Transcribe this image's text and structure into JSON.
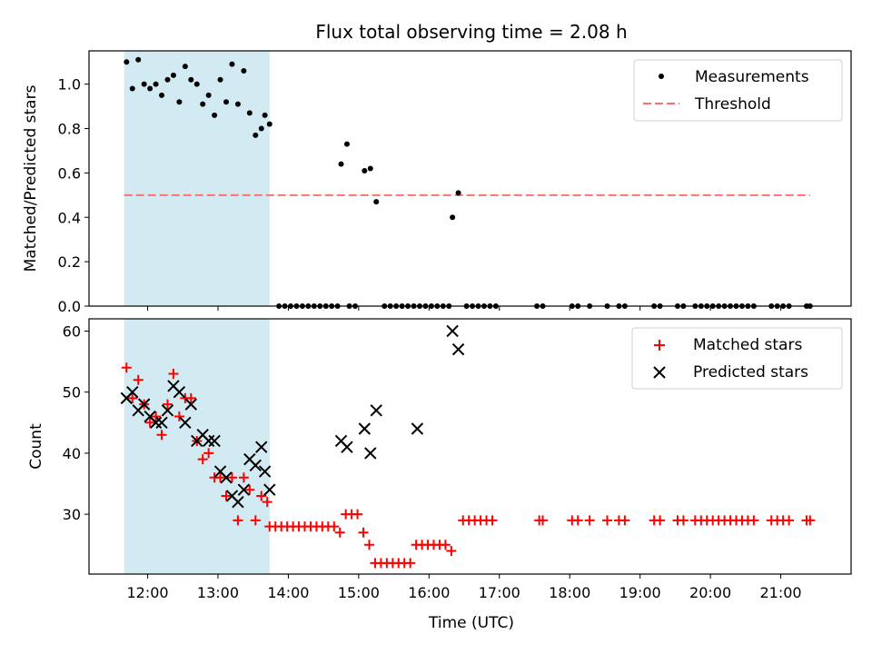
{
  "title": "Flux total observing time = 2.08 h",
  "colors": {
    "shade": "#add8e6",
    "threshold": "#ff7070",
    "matched": "#ff0000",
    "predicted": "#000000",
    "measurement": "#000000"
  },
  "chart_data": [
    {
      "type": "scatter",
      "ylabel": "Matched/Predicted stars",
      "ylim": [
        0,
        1.15
      ],
      "yticks": [
        "0.0",
        "0.2",
        "0.4",
        "0.6",
        "0.8",
        "1.0"
      ],
      "legend": {
        "position": "top-right",
        "entries": [
          "Measurements",
          "Threshold"
        ]
      },
      "shaded_region": [
        "11:40",
        "13:44"
      ],
      "threshold": {
        "name": "Threshold",
        "value": 0.5,
        "x": [
          "11:40",
          "21:25"
        ]
      },
      "series": [
        {
          "name": "Measurements",
          "points": [
            [
              "11:42",
              1.1
            ],
            [
              "11:47",
              0.98
            ],
            [
              "11:52",
              1.11
            ],
            [
              "11:57",
              1.0
            ],
            [
              "12:02",
              0.98
            ],
            [
              "12:07",
              1.0
            ],
            [
              "12:12",
              0.95
            ],
            [
              "12:17",
              1.02
            ],
            [
              "12:22",
              1.04
            ],
            [
              "12:27",
              0.92
            ],
            [
              "12:32",
              1.08
            ],
            [
              "12:37",
              1.02
            ],
            [
              "12:42",
              1.0
            ],
            [
              "12:47",
              0.91
            ],
            [
              "12:52",
              0.95
            ],
            [
              "12:57",
              0.86
            ],
            [
              "13:02",
              1.02
            ],
            [
              "13:07",
              0.92
            ],
            [
              "13:12",
              1.09
            ],
            [
              "13:17",
              0.91
            ],
            [
              "13:22",
              1.06
            ],
            [
              "13:27",
              0.87
            ],
            [
              "13:32",
              0.77
            ],
            [
              "13:37",
              0.8
            ],
            [
              "13:40",
              0.86
            ],
            [
              "13:44",
              0.82
            ],
            [
              "13:52",
              0
            ],
            [
              "13:57",
              0
            ],
            [
              "14:02",
              0
            ],
            [
              "14:07",
              0
            ],
            [
              "14:12",
              0
            ],
            [
              "14:17",
              0
            ],
            [
              "14:22",
              0
            ],
            [
              "14:27",
              0
            ],
            [
              "14:32",
              0
            ],
            [
              "14:37",
              0
            ],
            [
              "14:42",
              0
            ],
            [
              "14:45",
              0.64
            ],
            [
              "14:50",
              0.73
            ],
            [
              "14:52",
              0
            ],
            [
              "14:57",
              0
            ],
            [
              "15:05",
              0.61
            ],
            [
              "15:10",
              0.62
            ],
            [
              "15:15",
              0.47
            ],
            [
              "15:22",
              0
            ],
            [
              "15:27",
              0
            ],
            [
              "15:32",
              0
            ],
            [
              "15:37",
              0
            ],
            [
              "15:42",
              0
            ],
            [
              "15:47",
              0
            ],
            [
              "15:52",
              0
            ],
            [
              "15:57",
              0
            ],
            [
              "16:02",
              0
            ],
            [
              "16:07",
              0
            ],
            [
              "16:12",
              0
            ],
            [
              "16:17",
              0
            ],
            [
              "16:20",
              0.4
            ],
            [
              "16:25",
              0.51
            ],
            [
              "16:32",
              0
            ],
            [
              "16:37",
              0
            ],
            [
              "16:42",
              0
            ],
            [
              "16:47",
              0
            ],
            [
              "16:52",
              0
            ],
            [
              "16:57",
              0
            ],
            [
              "17:32",
              0
            ],
            [
              "17:37",
              0
            ],
            [
              "18:02",
              0
            ],
            [
              "18:07",
              0
            ],
            [
              "18:17",
              0
            ],
            [
              "18:32",
              0
            ],
            [
              "18:42",
              0
            ],
            [
              "18:47",
              0
            ],
            [
              "19:12",
              0
            ],
            [
              "19:17",
              0
            ],
            [
              "19:32",
              0
            ],
            [
              "19:37",
              0
            ],
            [
              "19:47",
              0
            ],
            [
              "19:52",
              0
            ],
            [
              "19:57",
              0
            ],
            [
              "20:02",
              0
            ],
            [
              "20:07",
              0
            ],
            [
              "20:12",
              0
            ],
            [
              "20:17",
              0
            ],
            [
              "20:22",
              0
            ],
            [
              "20:27",
              0
            ],
            [
              "20:32",
              0
            ],
            [
              "20:37",
              0
            ],
            [
              "20:52",
              0
            ],
            [
              "20:57",
              0
            ],
            [
              "21:02",
              0
            ],
            [
              "21:07",
              0
            ],
            [
              "21:22",
              0
            ],
            [
              "21:25",
              0
            ]
          ]
        }
      ]
    },
    {
      "type": "scatter",
      "xlabel": "Time (UTC)",
      "ylabel": "Count",
      "ylim": [
        20.2,
        62
      ],
      "yticks": [
        "30",
        "40",
        "50",
        "60"
      ],
      "xlim": [
        "11:10",
        "22:00"
      ],
      "xticks": [
        "12:00",
        "13:00",
        "14:00",
        "15:00",
        "16:00",
        "17:00",
        "18:00",
        "19:00",
        "20:00",
        "21:00"
      ],
      "legend": {
        "position": "top-right",
        "entries": [
          "Matched stars",
          "Predicted stars"
        ]
      },
      "shaded_region": [
        "11:40",
        "13:44"
      ],
      "series": [
        {
          "name": "Matched stars",
          "marker": "plus",
          "points": [
            [
              "11:42",
              54
            ],
            [
              "11:47",
              49
            ],
            [
              "11:52",
              52
            ],
            [
              "11:57",
              48
            ],
            [
              "12:02",
              45
            ],
            [
              "12:07",
              46
            ],
            [
              "12:12",
              43
            ],
            [
              "12:17",
              48
            ],
            [
              "12:22",
              53
            ],
            [
              "12:27",
              46
            ],
            [
              "12:32",
              49
            ],
            [
              "12:37",
              49
            ],
            [
              "12:42",
              42
            ],
            [
              "12:47",
              39
            ],
            [
              "12:52",
              40
            ],
            [
              "12:57",
              36
            ],
            [
              "13:02",
              36
            ],
            [
              "13:07",
              33
            ],
            [
              "13:12",
              36
            ],
            [
              "13:17",
              29
            ],
            [
              "13:22",
              36
            ],
            [
              "13:27",
              34
            ],
            [
              "13:32",
              29
            ],
            [
              "13:37",
              33
            ],
            [
              "13:42",
              32
            ],
            [
              "13:44",
              28
            ],
            [
              "13:49",
              28
            ],
            [
              "13:54",
              28
            ],
            [
              "13:59",
              28
            ],
            [
              "14:04",
              28
            ],
            [
              "14:09",
              28
            ],
            [
              "14:14",
              28
            ],
            [
              "14:19",
              28
            ],
            [
              "14:24",
              28
            ],
            [
              "14:29",
              28
            ],
            [
              "14:34",
              28
            ],
            [
              "14:39",
              28
            ],
            [
              "14:44",
              27
            ],
            [
              "14:49",
              30
            ],
            [
              "14:54",
              30
            ],
            [
              "14:59",
              30
            ],
            [
              "15:04",
              27
            ],
            [
              "15:09",
              25
            ],
            [
              "15:14",
              22
            ],
            [
              "15:19",
              22
            ],
            [
              "15:24",
              22
            ],
            [
              "15:29",
              22
            ],
            [
              "15:34",
              22
            ],
            [
              "15:39",
              22
            ],
            [
              "15:44",
              22
            ],
            [
              "15:49",
              25
            ],
            [
              "15:54",
              25
            ],
            [
              "15:59",
              25
            ],
            [
              "16:04",
              25
            ],
            [
              "16:09",
              25
            ],
            [
              "16:14",
              25
            ],
            [
              "16:19",
              24
            ],
            [
              "16:29",
              29
            ],
            [
              "16:34",
              29
            ],
            [
              "16:39",
              29
            ],
            [
              "16:44",
              29
            ],
            [
              "16:49",
              29
            ],
            [
              "16:54",
              29
            ],
            [
              "17:34",
              29
            ],
            [
              "17:37",
              29
            ],
            [
              "18:02",
              29
            ],
            [
              "18:07",
              29
            ],
            [
              "18:17",
              29
            ],
            [
              "18:32",
              29
            ],
            [
              "18:42",
              29
            ],
            [
              "18:47",
              29
            ],
            [
              "19:12",
              29
            ],
            [
              "19:17",
              29
            ],
            [
              "19:32",
              29
            ],
            [
              "19:37",
              29
            ],
            [
              "19:47",
              29
            ],
            [
              "19:52",
              29
            ],
            [
              "19:57",
              29
            ],
            [
              "20:02",
              29
            ],
            [
              "20:07",
              29
            ],
            [
              "20:12",
              29
            ],
            [
              "20:17",
              29
            ],
            [
              "20:22",
              29
            ],
            [
              "20:27",
              29
            ],
            [
              "20:32",
              29
            ],
            [
              "20:37",
              29
            ],
            [
              "20:52",
              29
            ],
            [
              "20:57",
              29
            ],
            [
              "21:02",
              29
            ],
            [
              "21:07",
              29
            ],
            [
              "21:22",
              29
            ],
            [
              "21:25",
              29
            ]
          ]
        },
        {
          "name": "Predicted stars",
          "marker": "x",
          "points": [
            [
              "11:42",
              49
            ],
            [
              "11:47",
              50
            ],
            [
              "11:52",
              47
            ],
            [
              "11:57",
              48
            ],
            [
              "12:02",
              46
            ],
            [
              "12:07",
              45
            ],
            [
              "12:12",
              45
            ],
            [
              "12:17",
              47
            ],
            [
              "12:22",
              51
            ],
            [
              "12:27",
              50
            ],
            [
              "12:32",
              45
            ],
            [
              "12:37",
              48
            ],
            [
              "12:42",
              42
            ],
            [
              "12:47",
              43
            ],
            [
              "12:52",
              42
            ],
            [
              "12:57",
              42
            ],
            [
              "13:02",
              37
            ],
            [
              "13:07",
              36
            ],
            [
              "13:12",
              33
            ],
            [
              "13:17",
              32
            ],
            [
              "13:22",
              34
            ],
            [
              "13:27",
              39
            ],
            [
              "13:32",
              38
            ],
            [
              "13:37",
              41
            ],
            [
              "13:40",
              37
            ],
            [
              "13:44",
              34
            ],
            [
              "14:45",
              42
            ],
            [
              "14:50",
              41
            ],
            [
              "15:05",
              44
            ],
            [
              "15:10",
              40
            ],
            [
              "15:15",
              47
            ],
            [
              "15:50",
              44
            ],
            [
              "16:20",
              60
            ],
            [
              "16:25",
              57
            ]
          ]
        }
      ]
    }
  ]
}
